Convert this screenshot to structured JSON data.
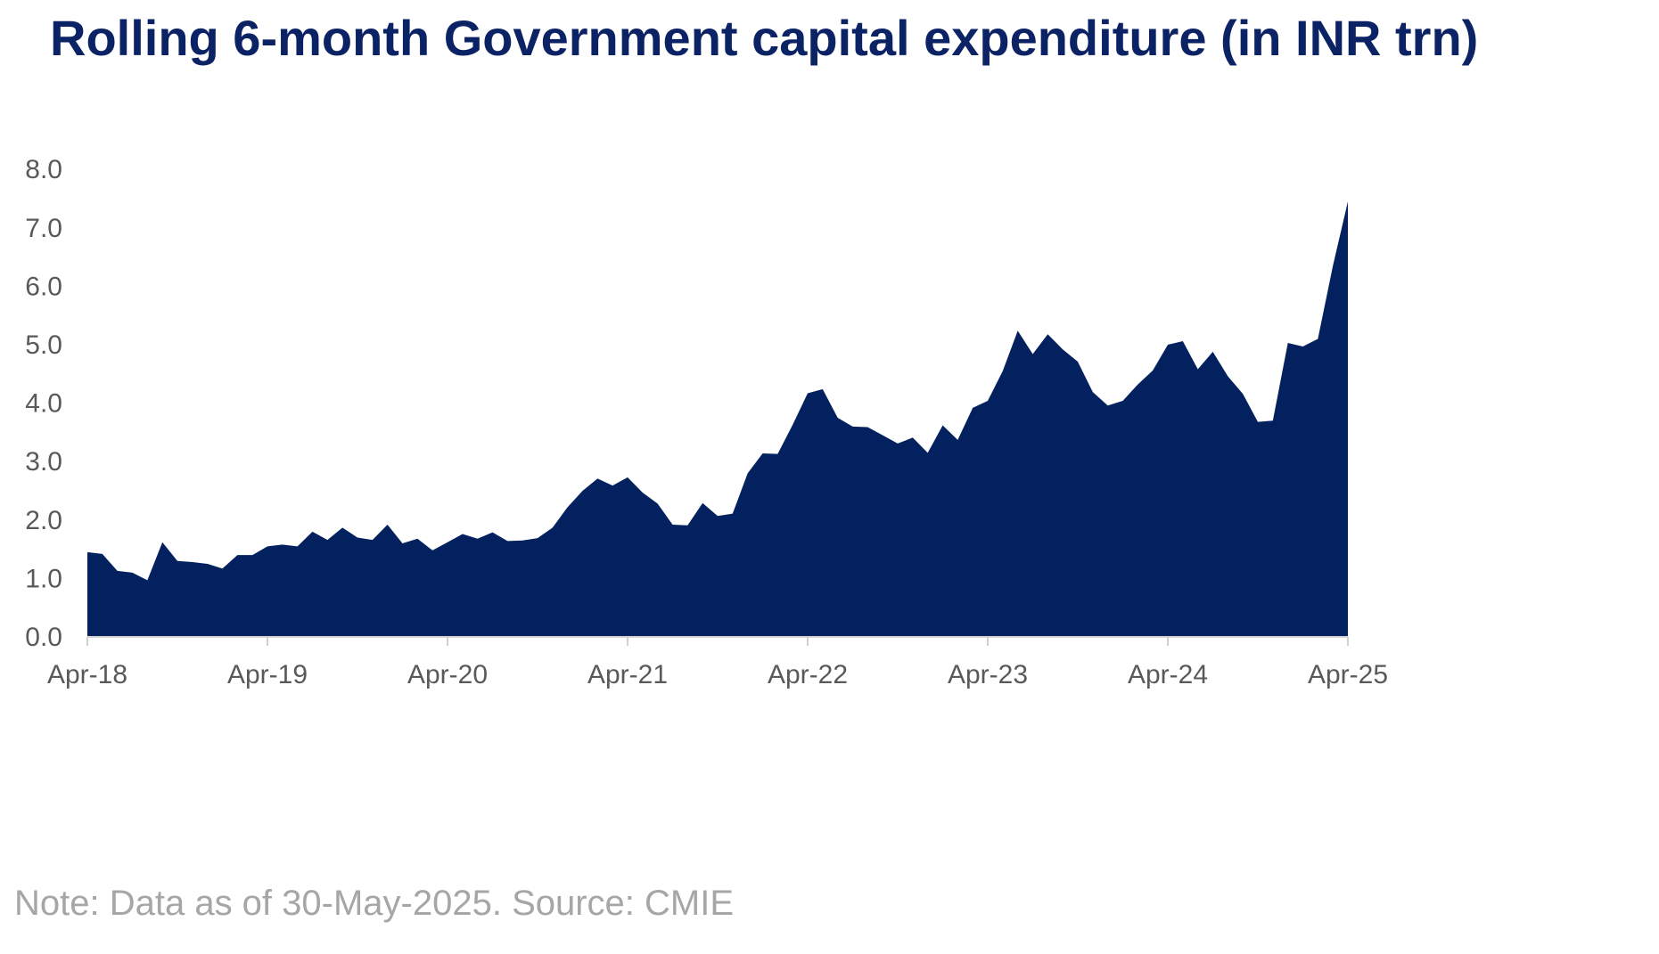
{
  "chart_data": {
    "type": "area",
    "title": "Rolling 6-month Government capital expenditure (in INR trn)",
    "xlabel": "",
    "ylabel": "",
    "ylim": [
      0,
      8
    ],
    "yticks": [
      "0.0",
      "1.0",
      "2.0",
      "3.0",
      "4.0",
      "5.0",
      "6.0",
      "7.0",
      "8.0"
    ],
    "xticks": [
      "Apr-18",
      "Apr-19",
      "Apr-20",
      "Apr-21",
      "Apr-22",
      "Apr-23",
      "Apr-24",
      "Apr-25"
    ],
    "grid": false,
    "legend": "none",
    "color": "#04215f",
    "series": [
      {
        "x": [
          "Apr-18",
          "May-18",
          "Jun-18",
          "Jul-18",
          "Aug-18",
          "Sep-18",
          "Oct-18",
          "Nov-18",
          "Dec-18",
          "Jan-19",
          "Feb-19",
          "Mar-19",
          "Apr-19",
          "May-19",
          "Jun-19",
          "Jul-19",
          "Aug-19",
          "Sep-19",
          "Oct-19",
          "Nov-19",
          "Dec-19",
          "Jan-20",
          "Feb-20",
          "Mar-20",
          "Apr-20",
          "May-20",
          "Jun-20",
          "Jul-20",
          "Aug-20",
          "Sep-20",
          "Oct-20",
          "Nov-20",
          "Dec-20",
          "Jan-21",
          "Feb-21",
          "Mar-21",
          "Apr-21",
          "May-21",
          "Jun-21",
          "Jul-21",
          "Aug-21",
          "Sep-21",
          "Oct-21",
          "Nov-21",
          "Dec-21",
          "Jan-22",
          "Feb-22",
          "Mar-22",
          "Apr-22",
          "May-22",
          "Jun-22",
          "Jul-22",
          "Aug-22",
          "Sep-22",
          "Oct-22",
          "Nov-22",
          "Dec-22",
          "Jan-23",
          "Feb-23",
          "Mar-23",
          "Apr-23",
          "May-23",
          "Jun-23",
          "Jul-23",
          "Aug-23",
          "Sep-23",
          "Oct-23",
          "Nov-23",
          "Dec-23",
          "Jan-24",
          "Feb-24",
          "Mar-24",
          "Apr-24",
          "May-24",
          "Jun-24",
          "Jul-24",
          "Aug-24",
          "Sep-24",
          "Oct-24",
          "Nov-24",
          "Dec-24",
          "Jan-25",
          "Feb-25",
          "Mar-25",
          "Apr-25"
        ],
        "values": [
          1.45,
          1.42,
          1.13,
          1.1,
          0.97,
          1.62,
          1.3,
          1.28,
          1.25,
          1.17,
          1.4,
          1.4,
          1.55,
          1.58,
          1.55,
          1.8,
          1.66,
          1.87,
          1.7,
          1.66,
          1.92,
          1.6,
          1.68,
          1.48,
          1.62,
          1.76,
          1.68,
          1.79,
          1.64,
          1.65,
          1.69,
          1.87,
          2.22,
          2.5,
          2.71,
          2.59,
          2.73,
          2.47,
          2.28,
          1.92,
          1.91,
          2.29,
          2.07,
          2.11,
          2.8,
          3.14,
          3.13,
          3.63,
          4.17,
          4.24,
          3.75,
          3.6,
          3.59,
          3.45,
          3.31,
          3.41,
          3.15,
          3.62,
          3.37,
          3.92,
          4.04,
          4.55,
          5.24,
          4.84,
          5.18,
          4.92,
          4.71,
          4.19,
          3.96,
          4.04,
          4.32,
          4.56,
          5.0,
          5.06,
          4.58,
          4.88,
          4.46,
          4.16,
          3.68,
          3.7,
          5.03,
          4.97,
          5.1,
          6.35,
          7.45
        ]
      }
    ]
  },
  "note": "Note: Data as of 30-May-2025. Source: CMIE"
}
